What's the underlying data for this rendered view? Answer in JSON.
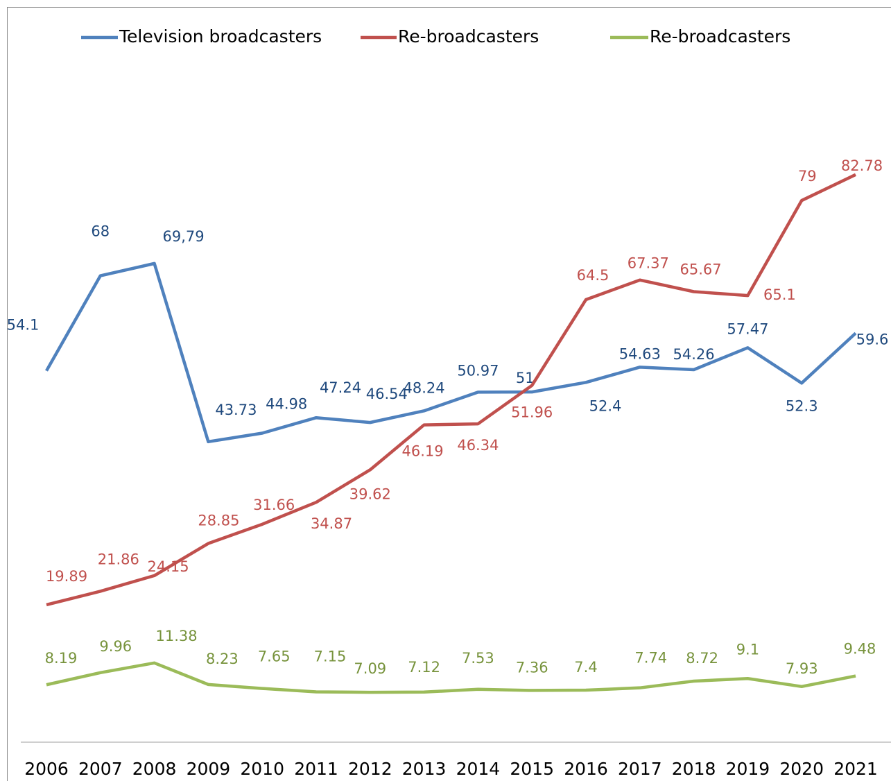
{
  "chart_data": {
    "type": "line",
    "categories": [
      "2006",
      "2007",
      "2008",
      "2009",
      "2010",
      "2011",
      "2012",
      "2013",
      "2014",
      "2015",
      "2016",
      "2017",
      "2018",
      "2019",
      "2020",
      "2021"
    ],
    "ylim": [
      0,
      100
    ],
    "series": [
      {
        "name": "Television broadcasters",
        "color": "#4f81bd",
        "label_color": "#1f497d",
        "values": [
          54.1,
          68,
          69.79,
          43.73,
          44.98,
          47.24,
          46.54,
          48.24,
          50.97,
          51,
          52.4,
          54.63,
          54.26,
          57.47,
          52.3,
          59.6
        ],
        "value_labels": [
          "54.1",
          "68",
          "69,79",
          "43.73",
          "44.98",
          "47.24",
          "46.54",
          "48.24",
          "50.97",
          "51",
          "52.4",
          "54.63",
          "54.26",
          "57.47",
          "52.3",
          "59.6"
        ]
      },
      {
        "name": "Re-broadcasters",
        "color": "#c0504d",
        "label_color": "#c0504d",
        "values": [
          19.89,
          21.86,
          24.15,
          28.85,
          31.66,
          34.87,
          39.62,
          46.19,
          46.34,
          51.96,
          64.5,
          67.37,
          65.67,
          65.1,
          79,
          82.78
        ]
      },
      {
        "name": "Re-broadcasters",
        "color": "#9bbb59",
        "label_color": "#77933c",
        "values": [
          8.19,
          9.96,
          11.38,
          8.23,
          7.65,
          7.15,
          7.09,
          7.12,
          7.53,
          7.36,
          7.4,
          7.74,
          8.72,
          9.1,
          7.93,
          9.48
        ]
      }
    ]
  }
}
